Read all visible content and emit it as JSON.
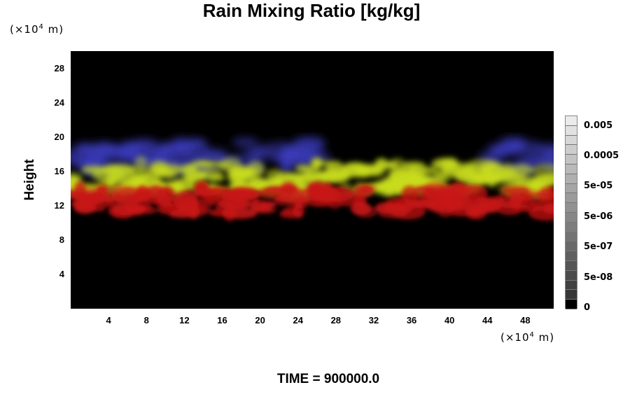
{
  "chart_data": {
    "type": "heatmap",
    "title": "Rain Mixing Ratio [kg/kg]",
    "ylabel": "Height",
    "xunit": {
      "prefix": "(×10",
      "exp": "4",
      "suffix": " m)"
    },
    "yunit": {
      "prefix": "(×10",
      "exp": "4",
      "suffix": " m)"
    },
    "xlim": [
      0,
      51
    ],
    "ylim": [
      0,
      30
    ],
    "xticks": [
      4,
      8,
      12,
      16,
      20,
      24,
      28,
      32,
      36,
      40,
      44,
      48
    ],
    "yticks": [
      4,
      8,
      12,
      16,
      20,
      24,
      28
    ],
    "colorbar": {
      "labels": [
        "0.005",
        "0.0005",
        "5e-05",
        "5e-06",
        "5e-07",
        "5e-08",
        "0"
      ],
      "n_levels": 20,
      "min_color": "#000000",
      "max_color": "#ffffff"
    },
    "background_color": "#000000",
    "layers": [
      {
        "name": "blue",
        "color": "#3a3ab8",
        "y_range": [
          16,
          19.5
        ],
        "x_extent": [
          [
            0,
            26
          ],
          [
            44,
            51
          ]
        ]
      },
      {
        "name": "yellow",
        "color": "#c8dc1e",
        "y_range": [
          13.5,
          17
        ],
        "x_extent": [
          [
            0,
            51
          ]
        ]
      },
      {
        "name": "red",
        "color": "#c81414",
        "y_range": [
          11,
          14
        ],
        "x_extent": [
          [
            0,
            51
          ]
        ]
      }
    ],
    "grid": false
  },
  "footer": {
    "time_label": "TIME = 900000.0"
  }
}
